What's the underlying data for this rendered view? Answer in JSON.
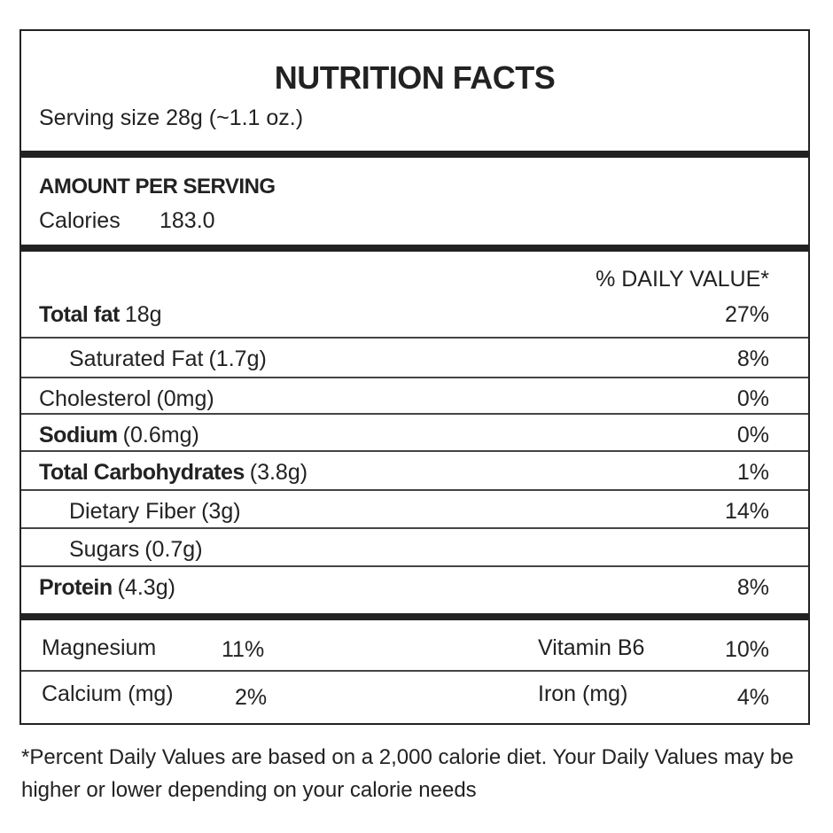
{
  "header": {
    "title": "NUTRITION FACTS",
    "serving": "Serving size 28g (~1.1 oz.)"
  },
  "amount": {
    "heading": "AMOUNT PER SERVING",
    "calories_label": "Calories",
    "calories": "183.0"
  },
  "daily_value_heading": "% DAILY VALUE*",
  "rows": [
    {
      "name": "Total fat",
      "amount": "18g",
      "dv": "27%"
    },
    {
      "name": "Saturated Fat",
      "amount": "(1.7g)",
      "dv": "8%"
    },
    {
      "name": "Cholesterol",
      "amount": "(0mg)",
      "dv": "0%"
    },
    {
      "name": "Sodium",
      "amount": "(0.6mg)",
      "dv": "0%"
    },
    {
      "name": "Total Carbohydrates",
      "amount": "(3.8g)",
      "dv": "1%"
    },
    {
      "name": "Dietary Fiber",
      "amount": "(3g)",
      "dv": "14%"
    },
    {
      "name": "Sugars",
      "amount": "(0.7g)"
    },
    {
      "name": "Protein",
      "amount": "(4.3g)",
      "dv": "8%"
    }
  ],
  "minerals": [
    [
      {
        "name": "Magnesium",
        "dv": "11%"
      },
      {
        "name": "Vitamin B6",
        "dv": "10%"
      }
    ],
    [
      {
        "name": "Calcium (mg)",
        "dv": "2%"
      },
      {
        "name": "Iron (mg)",
        "dv": "4%"
      }
    ]
  ],
  "footnote": "*Percent Daily Values are based on a 2,000 calorie diet. Your Daily Values may be higher or lower depending on your calorie needs"
}
